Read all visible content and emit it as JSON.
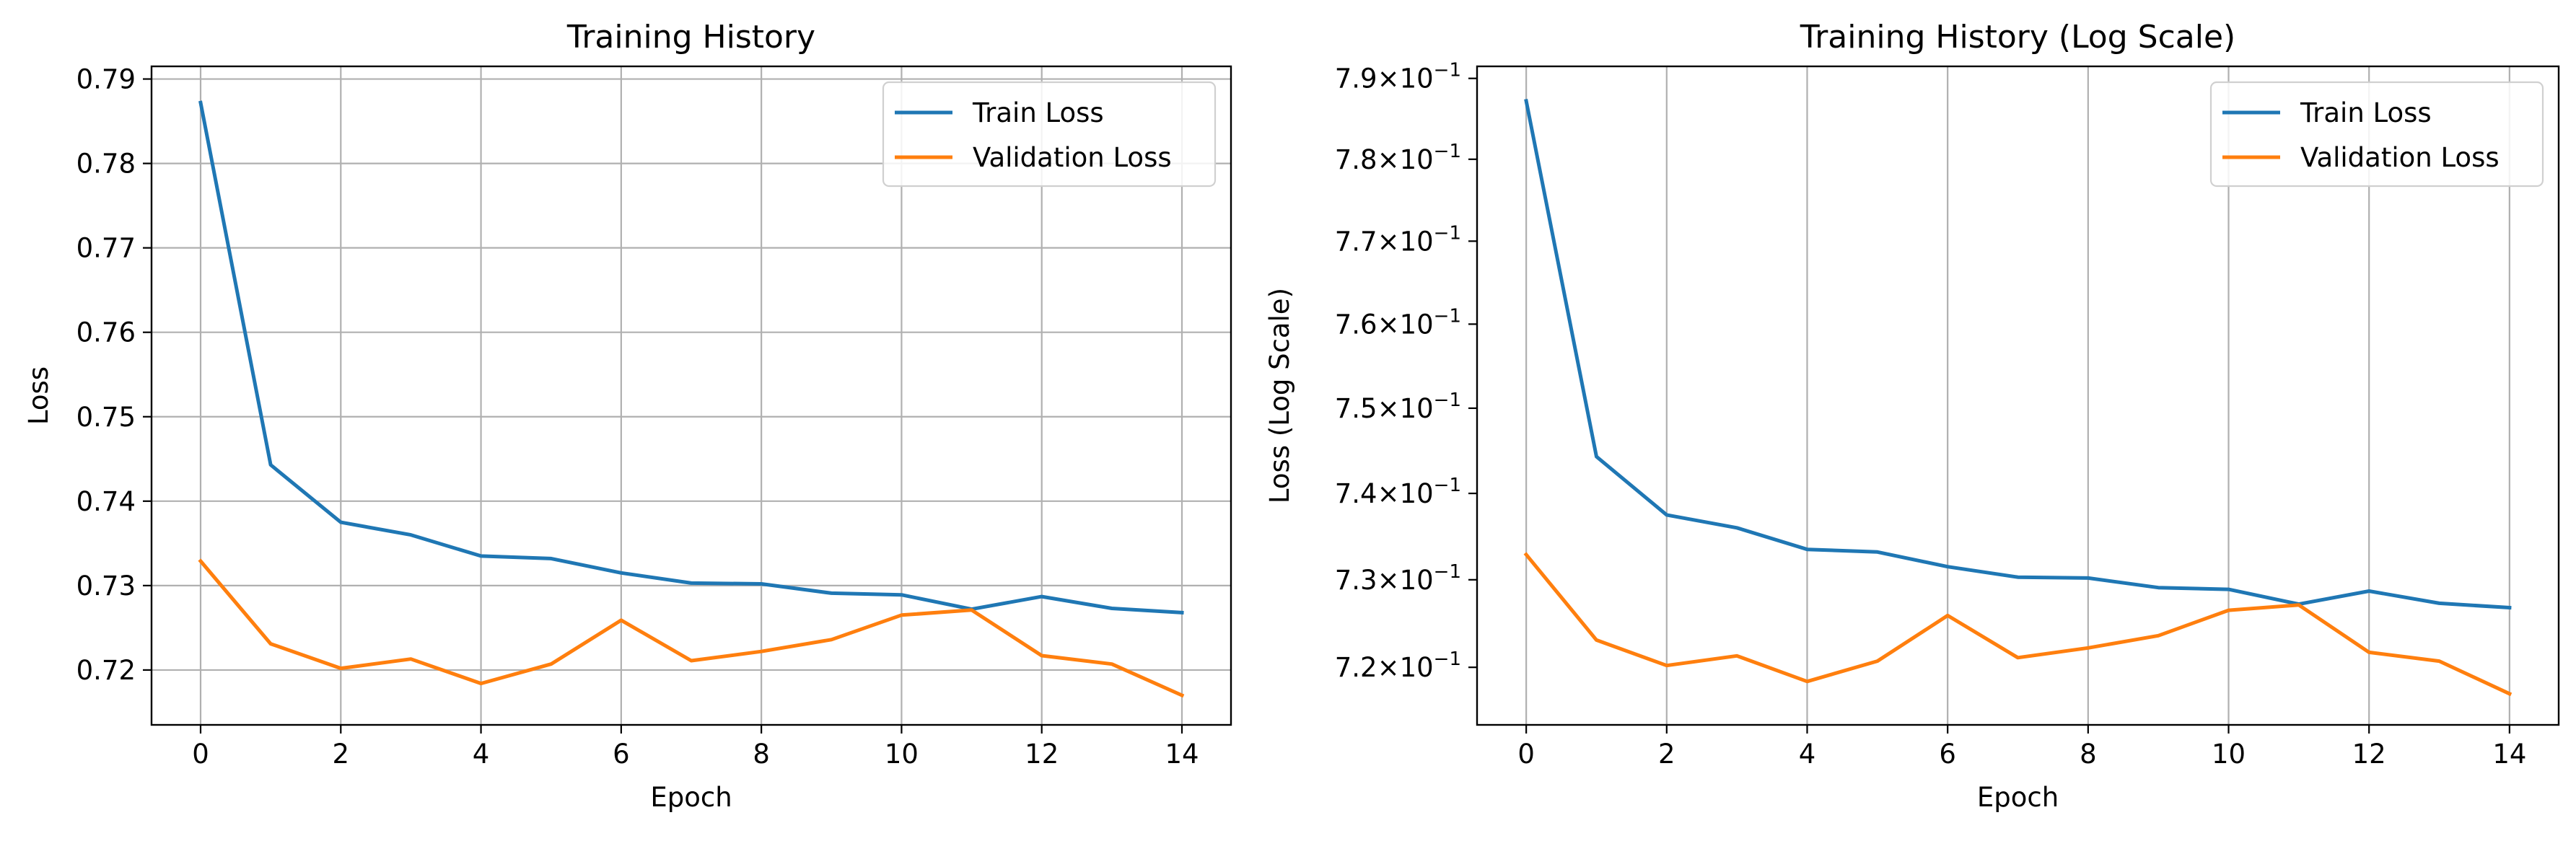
{
  "chart_data": [
    {
      "type": "line",
      "title": "Training History",
      "xlabel": "Epoch",
      "ylabel": "Loss",
      "xlim": [
        -0.7,
        14.7
      ],
      "ylim": [
        0.7135,
        0.7915
      ],
      "xticks": [
        0,
        2,
        4,
        6,
        8,
        10,
        12,
        14
      ],
      "yticks": [
        0.72,
        0.73,
        0.74,
        0.75,
        0.76,
        0.77,
        0.78,
        0.79
      ],
      "ytick_labels": [
        "0.72",
        "0.73",
        "0.74",
        "0.75",
        "0.76",
        "0.77",
        "0.78",
        "0.79"
      ],
      "yscale": "linear",
      "grid": "both",
      "legend": "top-right",
      "x": [
        0,
        1,
        2,
        3,
        4,
        5,
        6,
        7,
        8,
        9,
        10,
        11,
        12,
        13,
        14
      ],
      "series": [
        {
          "name": "Train Loss",
          "color": "#1f77b4",
          "values": [
            0.7872,
            0.7443,
            0.7375,
            0.736,
            0.7335,
            0.7332,
            0.7315,
            0.7303,
            0.7302,
            0.7291,
            0.7289,
            0.7272,
            0.7287,
            0.7273,
            0.7268
          ]
        },
        {
          "name": "Validation Loss",
          "color": "#ff7f0e",
          "values": [
            0.7329,
            0.7231,
            0.7202,
            0.7213,
            0.7184,
            0.7207,
            0.7259,
            0.7211,
            0.7222,
            0.7236,
            0.7265,
            0.7271,
            0.7217,
            0.7207,
            0.717
          ]
        }
      ]
    },
    {
      "type": "line",
      "title": "Training History (Log Scale)",
      "xlabel": "Epoch",
      "ylabel": "Loss (Log Scale)",
      "xlim": [
        -0.7,
        14.7
      ],
      "ylim": [
        0.7135,
        0.7915
      ],
      "xticks": [
        0,
        2,
        4,
        6,
        8,
        10,
        12,
        14
      ],
      "yticks": [
        0.72,
        0.73,
        0.74,
        0.75,
        0.76,
        0.77,
        0.78,
        0.79
      ],
      "ytick_labels": [
        {
          "mantissa": "7.2",
          "base": "10",
          "exp": "−1"
        },
        {
          "mantissa": "7.3",
          "base": "10",
          "exp": "−1"
        },
        {
          "mantissa": "7.4",
          "base": "10",
          "exp": "−1"
        },
        {
          "mantissa": "7.5",
          "base": "10",
          "exp": "−1"
        },
        {
          "mantissa": "7.6",
          "base": "10",
          "exp": "−1"
        },
        {
          "mantissa": "7.7",
          "base": "10",
          "exp": "−1"
        },
        {
          "mantissa": "7.8",
          "base": "10",
          "exp": "−1"
        },
        {
          "mantissa": "7.9",
          "base": "10",
          "exp": "−1"
        }
      ],
      "yscale": "log",
      "grid": "x",
      "legend": "top-right",
      "x": [
        0,
        1,
        2,
        3,
        4,
        5,
        6,
        7,
        8,
        9,
        10,
        11,
        12,
        13,
        14
      ],
      "series": [
        {
          "name": "Train Loss",
          "color": "#1f77b4",
          "values": [
            0.7872,
            0.7443,
            0.7375,
            0.736,
            0.7335,
            0.7332,
            0.7315,
            0.7303,
            0.7302,
            0.7291,
            0.7289,
            0.7272,
            0.7287,
            0.7273,
            0.7268
          ]
        },
        {
          "name": "Validation Loss",
          "color": "#ff7f0e",
          "values": [
            0.7329,
            0.7231,
            0.7202,
            0.7213,
            0.7184,
            0.7207,
            0.7259,
            0.7211,
            0.7222,
            0.7236,
            0.7265,
            0.7271,
            0.7217,
            0.7207,
            0.717
          ]
        }
      ]
    }
  ]
}
